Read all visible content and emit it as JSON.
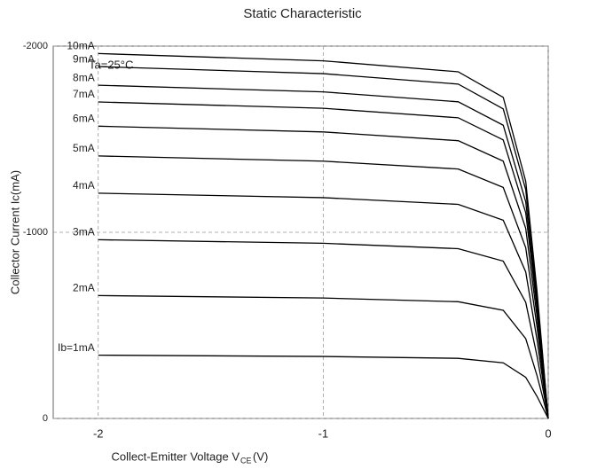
{
  "chart_data": {
    "type": "line",
    "title": "Static Characteristic",
    "annotation": "Ta=25°C",
    "xlabel": "Collect-Emitter Voltage  V",
    "xlabel_sub": "CE",
    "xlabel_unit": "(V)",
    "ylabel": "Collector Current  Ic(mA)",
    "x": [
      0,
      -0.05,
      -0.1,
      -0.2,
      -0.4,
      -1,
      -2
    ],
    "xlim": [
      -2.2,
      0
    ],
    "xticks": [
      -2,
      -1,
      0
    ],
    "ylim": [
      0,
      -2000
    ],
    "yticks": [
      0,
      -1000,
      -2000
    ],
    "grid": true,
    "color": "#000000",
    "series": [
      {
        "name": "Ib=1mA",
        "values": [
          0,
          -119,
          -221,
          -299,
          -323,
          -333,
          -340
        ]
      },
      {
        "name": "2mA",
        "values": [
          0,
          -231,
          -429,
          -581,
          -627,
          -647,
          -660
        ]
      },
      {
        "name": "3mA",
        "values": [
          0,
          -336,
          -624,
          -845,
          -912,
          -941,
          -960
        ]
      },
      {
        "name": "4mA",
        "values": [
          0,
          -424,
          -787,
          -1065,
          -1150,
          -1186,
          -1210
        ]
      },
      {
        "name": "5mA",
        "values": [
          0,
          -494,
          -917,
          -1241,
          -1340,
          -1382,
          -1410
        ]
      },
      {
        "name": "6mA",
        "values": [
          0,
          -550,
          -1021,
          -1382,
          -1492,
          -1539,
          -1570
        ]
      },
      {
        "name": "7mA",
        "values": [
          0,
          -595,
          -1105,
          -1496,
          -1615,
          -1666,
          -1700
        ]
      },
      {
        "name": "8mA",
        "values": [
          0,
          -627,
          -1164,
          -1575,
          -1701,
          -1754,
          -1790
        ]
      },
      {
        "name": "9mA",
        "values": [
          0,
          -662,
          -1229,
          -1663,
          -1796,
          -1852,
          -1890
        ]
      },
      {
        "name": "10mA",
        "values": [
          0,
          -686,
          -1274,
          -1725,
          -1862,
          -1921,
          -1960
        ]
      }
    ]
  }
}
